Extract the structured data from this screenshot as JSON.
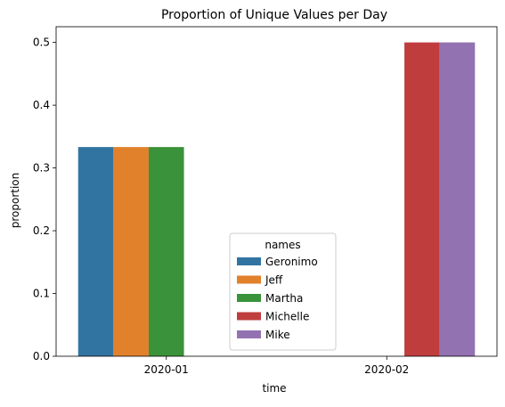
{
  "chart_data": {
    "type": "bar",
    "title": "Proportion of Unique Values per Day",
    "xlabel": "time",
    "ylabel": "proportion",
    "categories": [
      "2020-01",
      "2020-02"
    ],
    "ylim": [
      0,
      0.525
    ],
    "yticks": [
      "0.0",
      "0.1",
      "0.2",
      "0.3",
      "0.4",
      "0.5"
    ],
    "legend": {
      "title": "names",
      "placement": "lower center"
    },
    "series": [
      {
        "name": "Geronimo",
        "color": "#3274a1",
        "values": [
          0.3333,
          null
        ]
      },
      {
        "name": "Jeff",
        "color": "#e1812c",
        "values": [
          0.3333,
          null
        ]
      },
      {
        "name": "Martha",
        "color": "#3a923a",
        "values": [
          0.3333,
          null
        ]
      },
      {
        "name": "Michelle",
        "color": "#c03d3e",
        "values": [
          null,
          0.5
        ]
      },
      {
        "name": "Mike",
        "color": "#9372b2",
        "values": [
          null,
          0.5
        ]
      }
    ]
  }
}
